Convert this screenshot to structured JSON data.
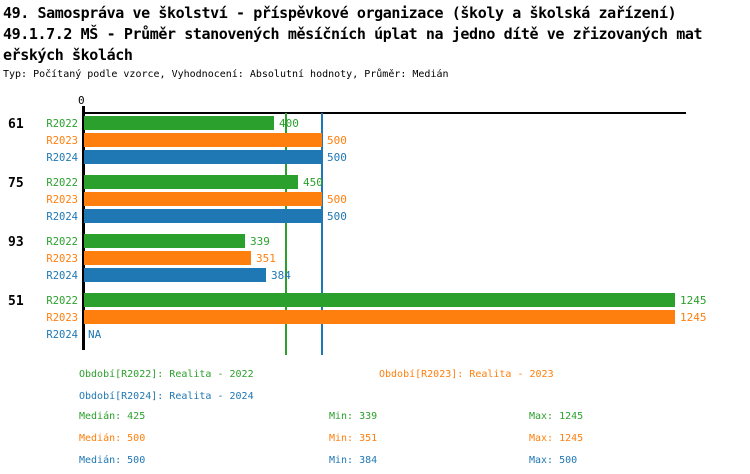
{
  "header": {
    "title_lines": [
      "49. Samospráva ve školství - příspěvkové organizace (školy a školská zařízení)",
      "49.1.7.2 MŠ - Průměr stanovených měsíčních úplat na jedno dítě ve zřizovaných mat",
      "eřských školách"
    ],
    "meta": "Typ: Počítaný podle vzorce, Vyhodnocení: Absolutní hodnoty, Průměr: Medián"
  },
  "chart_data": {
    "type": "bar",
    "orientation": "horizontal",
    "title": "49. Samospráva ve školství - příspěvkové organizace (školy a školská zařízení)",
    "subtitle": "49.1.7.2 MŠ - Průměr stanovených měsíčních úplat na jedno dítě ve zřizovaných mateřských školách",
    "meta": "Typ: Počítaný podle vzorce, Vyhodnocení: Absolutní hodnoty, Průměr: Medián",
    "categories": [
      "61",
      "75",
      "93",
      "51"
    ],
    "series": [
      {
        "name": "R2022",
        "legend": "Období[R2022]: Realita - 2022",
        "color": "#2ca02c",
        "values": [
          400,
          450,
          339,
          1245
        ],
        "median": 425,
        "min": 339,
        "max": 1245
      },
      {
        "name": "R2023",
        "legend": "Období[R2023]: Realita - 2023",
        "color": "#ff7f0e",
        "values": [
          500,
          500,
          351,
          1245
        ],
        "median": 500,
        "min": 351,
        "max": 1245
      },
      {
        "name": "R2024",
        "legend": "Období[R2024]: Realita - 2024",
        "color": "#1f77b4",
        "values": [
          500,
          500,
          384,
          null
        ],
        "median": 500,
        "min": 384,
        "max": 500
      }
    ],
    "na_label": "NA",
    "zero_label": "0",
    "value_axis": {
      "min": 0,
      "grid": false
    },
    "median_lines": [
      {
        "series": "R2022",
        "value": 425,
        "color": "#2ca02c"
      },
      {
        "series": "R2023",
        "value": 500,
        "color": "#ff7f0e"
      },
      {
        "series": "R2024",
        "value": 500,
        "color": "#1f77b4"
      }
    ],
    "stats_labels": {
      "median": "Medián",
      "min": "Min",
      "max": "Max"
    },
    "legend_position": "bottom"
  }
}
